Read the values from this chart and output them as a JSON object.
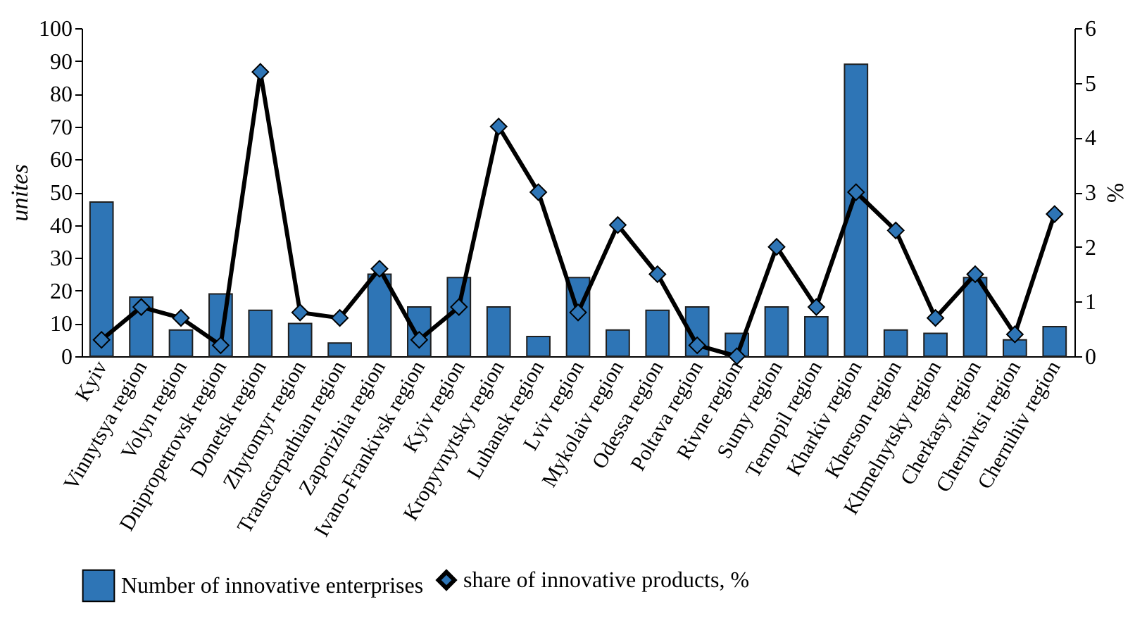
{
  "chart_data": {
    "type": "bar",
    "xlabel": null,
    "ylabel": "unites",
    "y2label": "%",
    "categories": [
      "Kyiv",
      "Vinnytsya region",
      "Volyn region",
      "Dnipropetrovsk region",
      "Donetsk region",
      "Zhytomyr region",
      "Transcarpathian region",
      "Zaporizhia region",
      "Ivano-Frankivsk region",
      "Kyiv region",
      "Kropyvnytsky region",
      "Luhansk region",
      "Lviv region",
      "Mykolaiv region",
      "Odessa region",
      "Poltava region",
      "Rivne region",
      "Sumy region",
      "Ternopil region",
      "Kharkiv region",
      "Kherson region",
      "Khmelnytsky region",
      "Cherkasy region",
      "Chernivtsi region",
      "Chernihiv region"
    ],
    "series": [
      {
        "name": "Number of innovative enterprises",
        "color": "#2e75b6",
        "values": [
          47,
          18,
          8,
          19,
          14,
          10,
          4,
          25,
          15,
          24,
          15,
          6,
          24,
          8,
          14,
          15,
          7,
          15,
          12,
          89,
          8,
          7,
          24,
          5,
          9
        ]
      },
      {
        "name": "share of innovative products, %",
        "type": "line",
        "axis": "y2",
        "color": "#000000",
        "marker": "diamond",
        "values": [
          0.3,
          0.9,
          0.7,
          0.2,
          5.2,
          0.8,
          0.7,
          1.6,
          0.3,
          0.9,
          4.2,
          3.0,
          0.8,
          2.4,
          1.5,
          0.2,
          0.0,
          2.0,
          0.9,
          3.0,
          2.3,
          0.7,
          1.5,
          0.4,
          2.6
        ]
      }
    ],
    "ylim": [
      0,
      100
    ],
    "yticks": [
      0,
      10,
      20,
      30,
      40,
      50,
      60,
      70,
      80,
      90,
      100
    ],
    "y2lim": [
      0,
      6
    ],
    "y2ticks": [
      0,
      1,
      2,
      3,
      4,
      5,
      6
    ],
    "grid": false,
    "legend": "bottom"
  }
}
